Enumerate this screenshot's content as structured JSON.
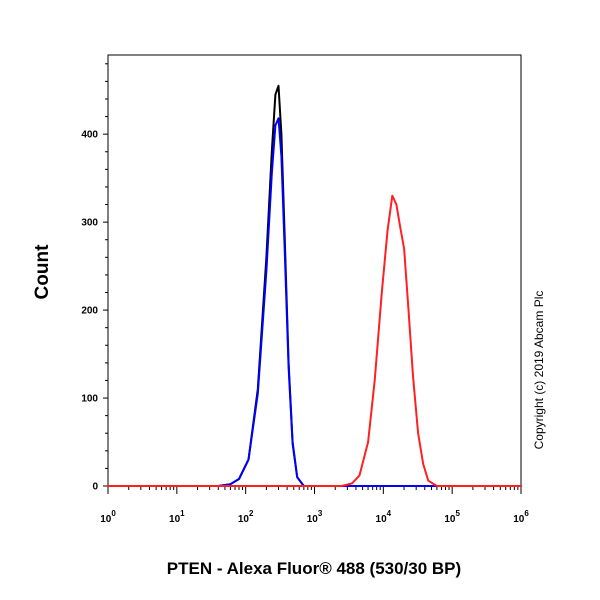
{
  "chart_data": {
    "type": "line",
    "xlabel": "PTEN - Alexa Fluor® 488 (530/30 BP)",
    "ylabel": "Count",
    "x_scale": "log",
    "xlim": [
      1,
      1000000
    ],
    "ylim": [
      0,
      490
    ],
    "x_ticks": [
      {
        "value": 1,
        "base": "10",
        "exp": "0"
      },
      {
        "value": 10,
        "base": "10",
        "exp": "1"
      },
      {
        "value": 100,
        "base": "10",
        "exp": "2"
      },
      {
        "value": 1000,
        "base": "10",
        "exp": "3"
      },
      {
        "value": 10000,
        "base": "10",
        "exp": "4"
      },
      {
        "value": 100000,
        "base": "10",
        "exp": "5"
      },
      {
        "value": 1000000,
        "base": "10",
        "exp": "6"
      }
    ],
    "y_ticks": [
      "0",
      "100",
      "200",
      "300",
      "400"
    ],
    "grid": false,
    "series": [
      {
        "color": "#000000",
        "x": [
          1,
          40,
          60,
          80,
          110,
          150,
          200,
          240,
          270,
          300,
          330,
          370,
          420,
          480,
          560,
          700,
          1000000
        ],
        "y": [
          0,
          0,
          2,
          8,
          30,
          110,
          260,
          380,
          445,
          455,
          400,
          280,
          140,
          50,
          10,
          0,
          0
        ]
      },
      {
        "color": "#0000ff",
        "x": [
          1,
          40,
          60,
          80,
          110,
          150,
          200,
          240,
          270,
          300,
          330,
          370,
          420,
          480,
          560,
          700,
          1000000
        ],
        "y": [
          0,
          0,
          2,
          8,
          30,
          105,
          245,
          355,
          410,
          418,
          375,
          265,
          135,
          48,
          10,
          0,
          0
        ]
      },
      {
        "color": "#ff2020",
        "x": [
          1,
          2500,
          3500,
          4500,
          6000,
          7500,
          9500,
          11500,
          13500,
          15500,
          17500,
          20000,
          23000,
          27000,
          32000,
          38000,
          45000,
          60000,
          1000000
        ],
        "y": [
          0,
          0,
          3,
          12,
          50,
          120,
          220,
          290,
          330,
          320,
          295,
          270,
          205,
          125,
          60,
          25,
          6,
          0,
          0
        ]
      }
    ]
  },
  "copyright": "Copyright (c) 2019 Abcam Plc"
}
